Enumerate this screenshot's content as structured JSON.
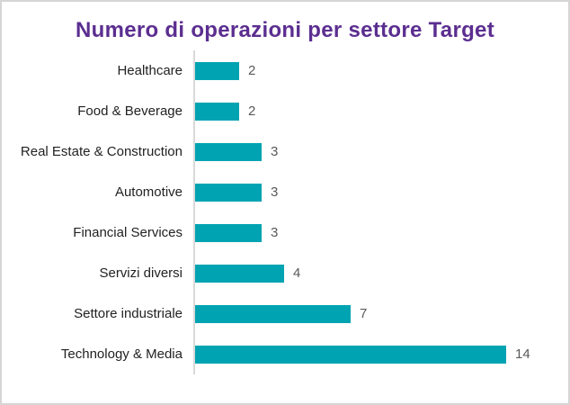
{
  "chart_data": {
    "type": "bar",
    "orientation": "horizontal",
    "title": "Numero di operazioni per settore Target",
    "categories": [
      "Healthcare",
      "Food & Beverage",
      "Real Estate & Construction",
      "Automotive",
      "Financial Services",
      "Servizi diversi",
      "Settore industriale",
      "Technology & Media"
    ],
    "values": [
      2,
      2,
      3,
      3,
      3,
      4,
      7,
      14
    ],
    "data_labels": [
      "2",
      "2",
      "3",
      "3",
      "3",
      "4",
      "7",
      "14"
    ],
    "xlim": [
      0,
      14
    ],
    "grid": false,
    "legend": "none",
    "bar_color": "#00A3B2",
    "title_color": "#5B2E90",
    "category_label_color": "#222222",
    "value_label_color": "#595959",
    "axis_line_color": "#D9D9D9",
    "background_color": "#FFFFFF",
    "border_color": "#D5D5D5"
  }
}
